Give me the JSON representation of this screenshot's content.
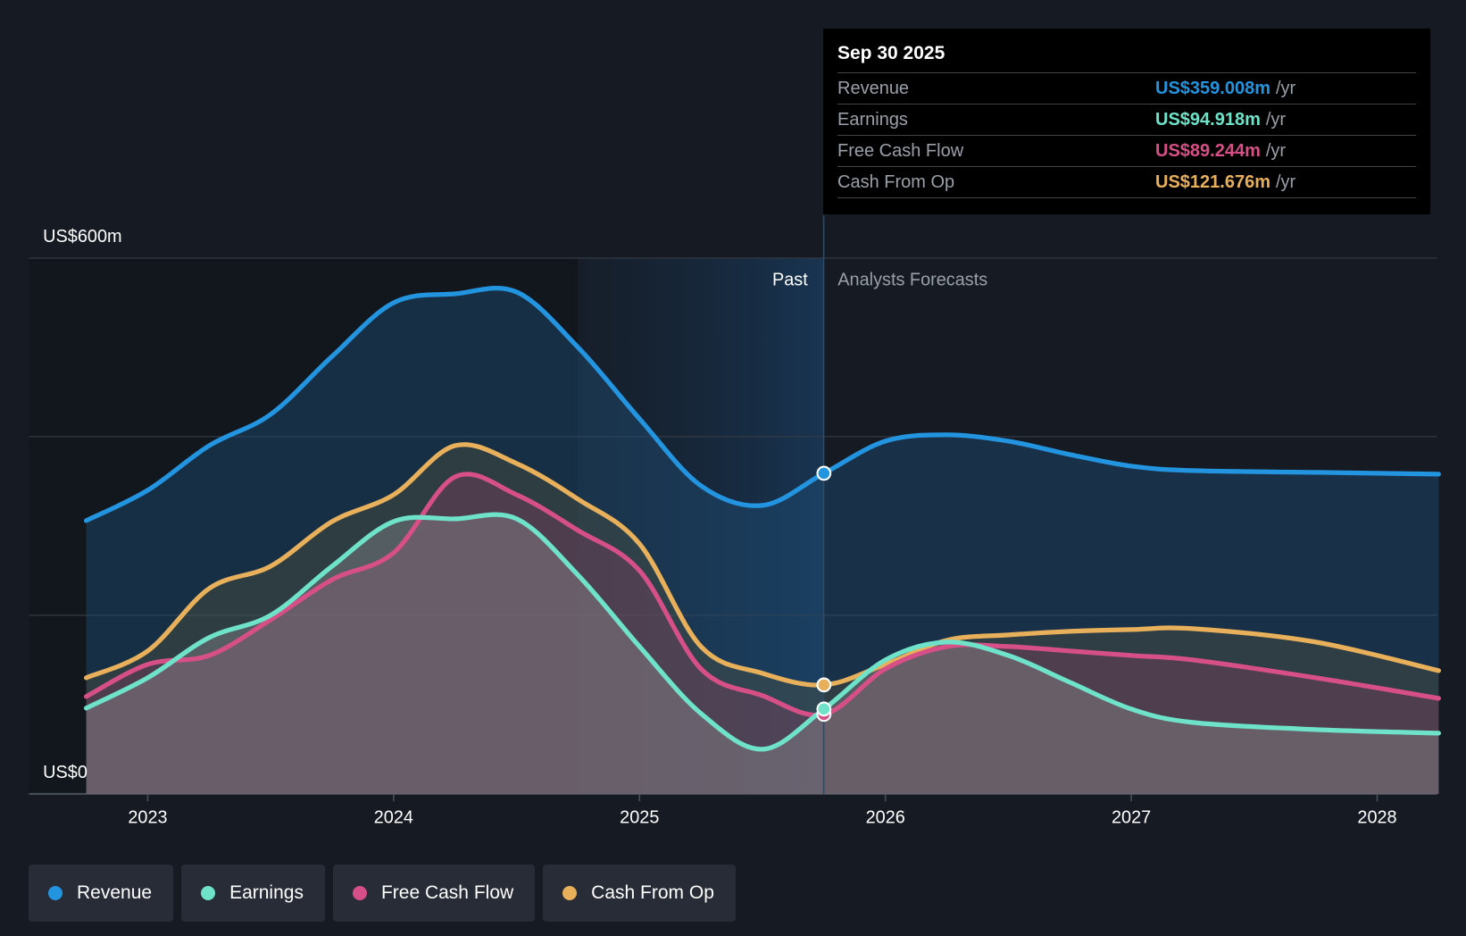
{
  "tooltip": {
    "date": "Sep 30 2025",
    "rows": [
      {
        "label": "Revenue",
        "value": "US$359.008m",
        "unit": "/yr",
        "color": "#2394df"
      },
      {
        "label": "Earnings",
        "value": "US$94.918m",
        "unit": "/yr",
        "color": "#6fe3c9"
      },
      {
        "label": "Free Cash Flow",
        "value": "US$89.244m",
        "unit": "/yr",
        "color": "#d64f86"
      },
      {
        "label": "Cash From Op",
        "value": "US$121.676m",
        "unit": "/yr",
        "color": "#e8b05b"
      }
    ]
  },
  "chart_data": {
    "type": "area",
    "ylabel_top": "US$600m",
    "ylabel_bottom": "US$0",
    "ylim": [
      0,
      600
    ],
    "xlim": [
      2022.5,
      2028.25
    ],
    "grid_values": [
      0,
      200,
      400,
      600
    ],
    "x_ticks": [
      "2023",
      "2024",
      "2025",
      "2026",
      "2027",
      "2028"
    ],
    "x_tick_values": [
      2023,
      2024,
      2025,
      2026,
      2027,
      2028
    ],
    "past_label": "Past",
    "forecast_label": "Analysts Forecasts",
    "past_start": 2024.75,
    "divider": 2025.75,
    "x": [
      2022.75,
      2023,
      2023.25,
      2023.5,
      2023.75,
      2024,
      2024.25,
      2024.5,
      2024.75,
      2025,
      2025.25,
      2025.5,
      2025.75,
      2026,
      2026.25,
      2026.5,
      2026.75,
      2027,
      2027.25,
      2027.75,
      2028.25
    ],
    "series": [
      {
        "name": "Cash From Op",
        "color": "#e8b05b",
        "values": [
          130,
          160,
          230,
          255,
          305,
          335,
          390,
          370,
          330,
          280,
          165,
          135,
          122,
          145,
          172,
          178,
          182,
          184,
          185,
          170,
          138
        ]
      },
      {
        "name": "Free Cash Flow",
        "color": "#d64f86",
        "values": [
          109,
          145,
          155,
          195,
          240,
          270,
          355,
          335,
          295,
          250,
          140,
          110,
          89,
          140,
          165,
          165,
          160,
          155,
          150,
          130,
          107
        ]
      },
      {
        "name": "Earnings",
        "color": "#6fe3c9",
        "values": [
          96,
          130,
          175,
          200,
          255,
          305,
          308,
          308,
          245,
          165,
          90,
          50,
          95,
          150,
          170,
          155,
          125,
          95,
          80,
          72,
          68
        ]
      },
      {
        "name": "Revenue",
        "color": "#2394df",
        "values": [
          306,
          340,
          390,
          425,
          490,
          550,
          560,
          562,
          500,
          420,
          345,
          323,
          359,
          395,
          402,
          395,
          380,
          367,
          362,
          360,
          358
        ]
      }
    ]
  },
  "legend": [
    {
      "label": "Revenue",
      "color": "#2394df"
    },
    {
      "label": "Earnings",
      "color": "#6fe3c9"
    },
    {
      "label": "Free Cash Flow",
      "color": "#d64f86"
    },
    {
      "label": "Cash From Op",
      "color": "#e8b05b"
    }
  ]
}
